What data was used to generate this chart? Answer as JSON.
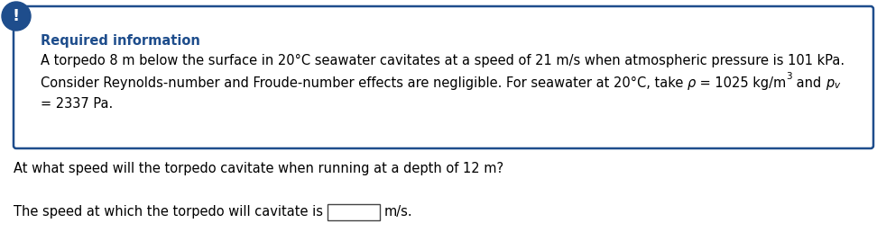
{
  "box_border_color": "#1e4d8c",
  "box_bg_color": "#ffffff",
  "icon_color": "#1e4d8c",
  "required_info_label": "Required information",
  "required_info_color": "#1e4d8c",
  "line1": "A torpedo 8 m below the surface in 20°C seawater cavitates at a speed of 21 m/s when atmospheric pressure is 101 kPa.",
  "line2_part1": "Consider Reynolds-number and Froude-number effects are negligible. For seawater at 20°C, take ",
  "line2_rho": "ρ",
  "line2_part2": " = 1025 kg/m",
  "line2_sup": "3",
  "line2_and": " and ",
  "line2_p": "p",
  "line2_v": "v",
  "line3": "= 2337 Pa.",
  "question": "At what speed will the torpedo cavitate when running at a depth of 12 m?",
  "answer_prefix": "The speed at which the torpedo will cavitate is",
  "answer_suffix": "m/s.",
  "text_color": "#000000",
  "bg_color": "#ffffff",
  "font_size": 10.5,
  "title_font_size": 10.5
}
